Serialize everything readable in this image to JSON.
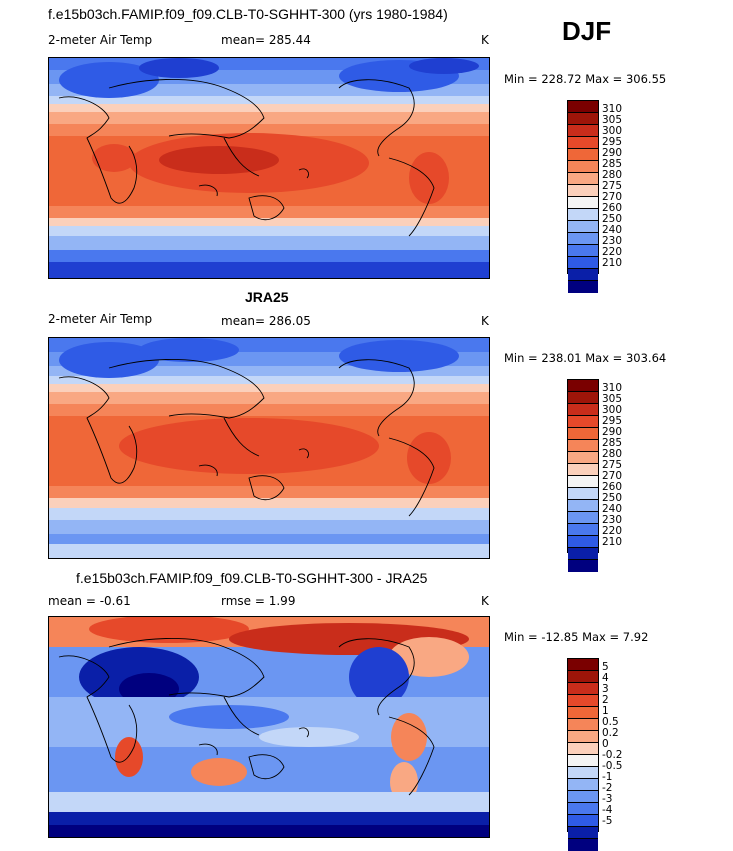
{
  "season": "DJF",
  "colors": {
    "temp_scale": [
      "#00007f",
      "#0a1fa8",
      "#1f3fd1",
      "#2f5be6",
      "#4a78ee",
      "#6b96f2",
      "#93b5f5",
      "#c3d7f8",
      "#f4f4f4",
      "#fbd0bb",
      "#f9a883",
      "#f58559",
      "#ef6738",
      "#e6492a",
      "#c92d1b",
      "#9e1509",
      "#7a0000"
    ],
    "diff_scale": [
      "#00007f",
      "#0a1fa8",
      "#1f3fd1",
      "#2f5be6",
      "#4a78ee",
      "#6b96f2",
      "#93b5f5",
      "#c3d7f8",
      "#f4f4f4",
      "#fbd0bb",
      "#f9a883",
      "#f58559",
      "#ef6738",
      "#e6492a",
      "#c92d1b",
      "#9e1509",
      "#7a0000"
    ]
  },
  "panels": [
    {
      "title": "f.e15b03ch.FAMIP.f09_f09.CLB-T0-SGHHT-300 (yrs 1980-1984)",
      "variable": "2-meter Air Temp",
      "mean": "mean= 285.44",
      "units": "K",
      "minmax": "Min = 228.72 Max = 306.55",
      "ticks": [
        "310",
        "305",
        "300",
        "295",
        "290",
        "285",
        "280",
        "275",
        "270",
        "260",
        "250",
        "240",
        "230",
        "220",
        "210"
      ]
    },
    {
      "title": "JRA25",
      "variable": "2-meter Air Temp",
      "mean": "mean= 286.05",
      "units": "K",
      "minmax": "Min = 238.01 Max = 303.64",
      "ticks": [
        "310",
        "305",
        "300",
        "295",
        "290",
        "285",
        "280",
        "275",
        "270",
        "260",
        "250",
        "240",
        "230",
        "220",
        "210"
      ]
    },
    {
      "title": "f.e15b03ch.FAMIP.f09_f09.CLB-T0-SGHHT-300 - JRA25",
      "variable": "mean =   -0.61",
      "mean": "rmse =    1.99",
      "units": "K",
      "minmax": "Min = -12.85 Max =    7.92",
      "ticks": [
        "5",
        "4",
        "3",
        "2",
        "1",
        "0.5",
        "0.2",
        "0",
        "-0.2",
        "-0.5",
        "-1",
        "-2",
        "-3",
        "-4",
        "-5"
      ]
    }
  ]
}
